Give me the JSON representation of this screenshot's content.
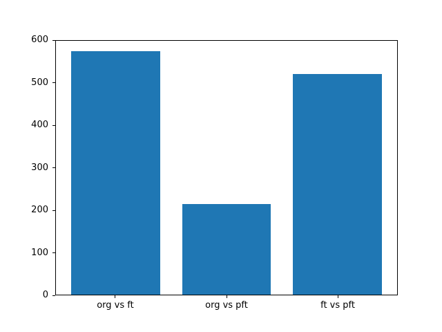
{
  "chart_data": {
    "type": "bar",
    "title": "",
    "xlabel": "",
    "ylabel": "",
    "categories": [
      "org vs ft",
      "org vs pft",
      "ft vs pft"
    ],
    "values": [
      575,
      215,
      522
    ],
    "ylim": [
      0,
      600
    ],
    "yticks": [
      0,
      100,
      200,
      300,
      400,
      500,
      600
    ],
    "bar_width": 0.8,
    "x_margin": 0.05,
    "bar_color": "#1f77b4",
    "background_color": "#ffffff",
    "spine_color": "#000000",
    "grid": false,
    "legend": null
  }
}
